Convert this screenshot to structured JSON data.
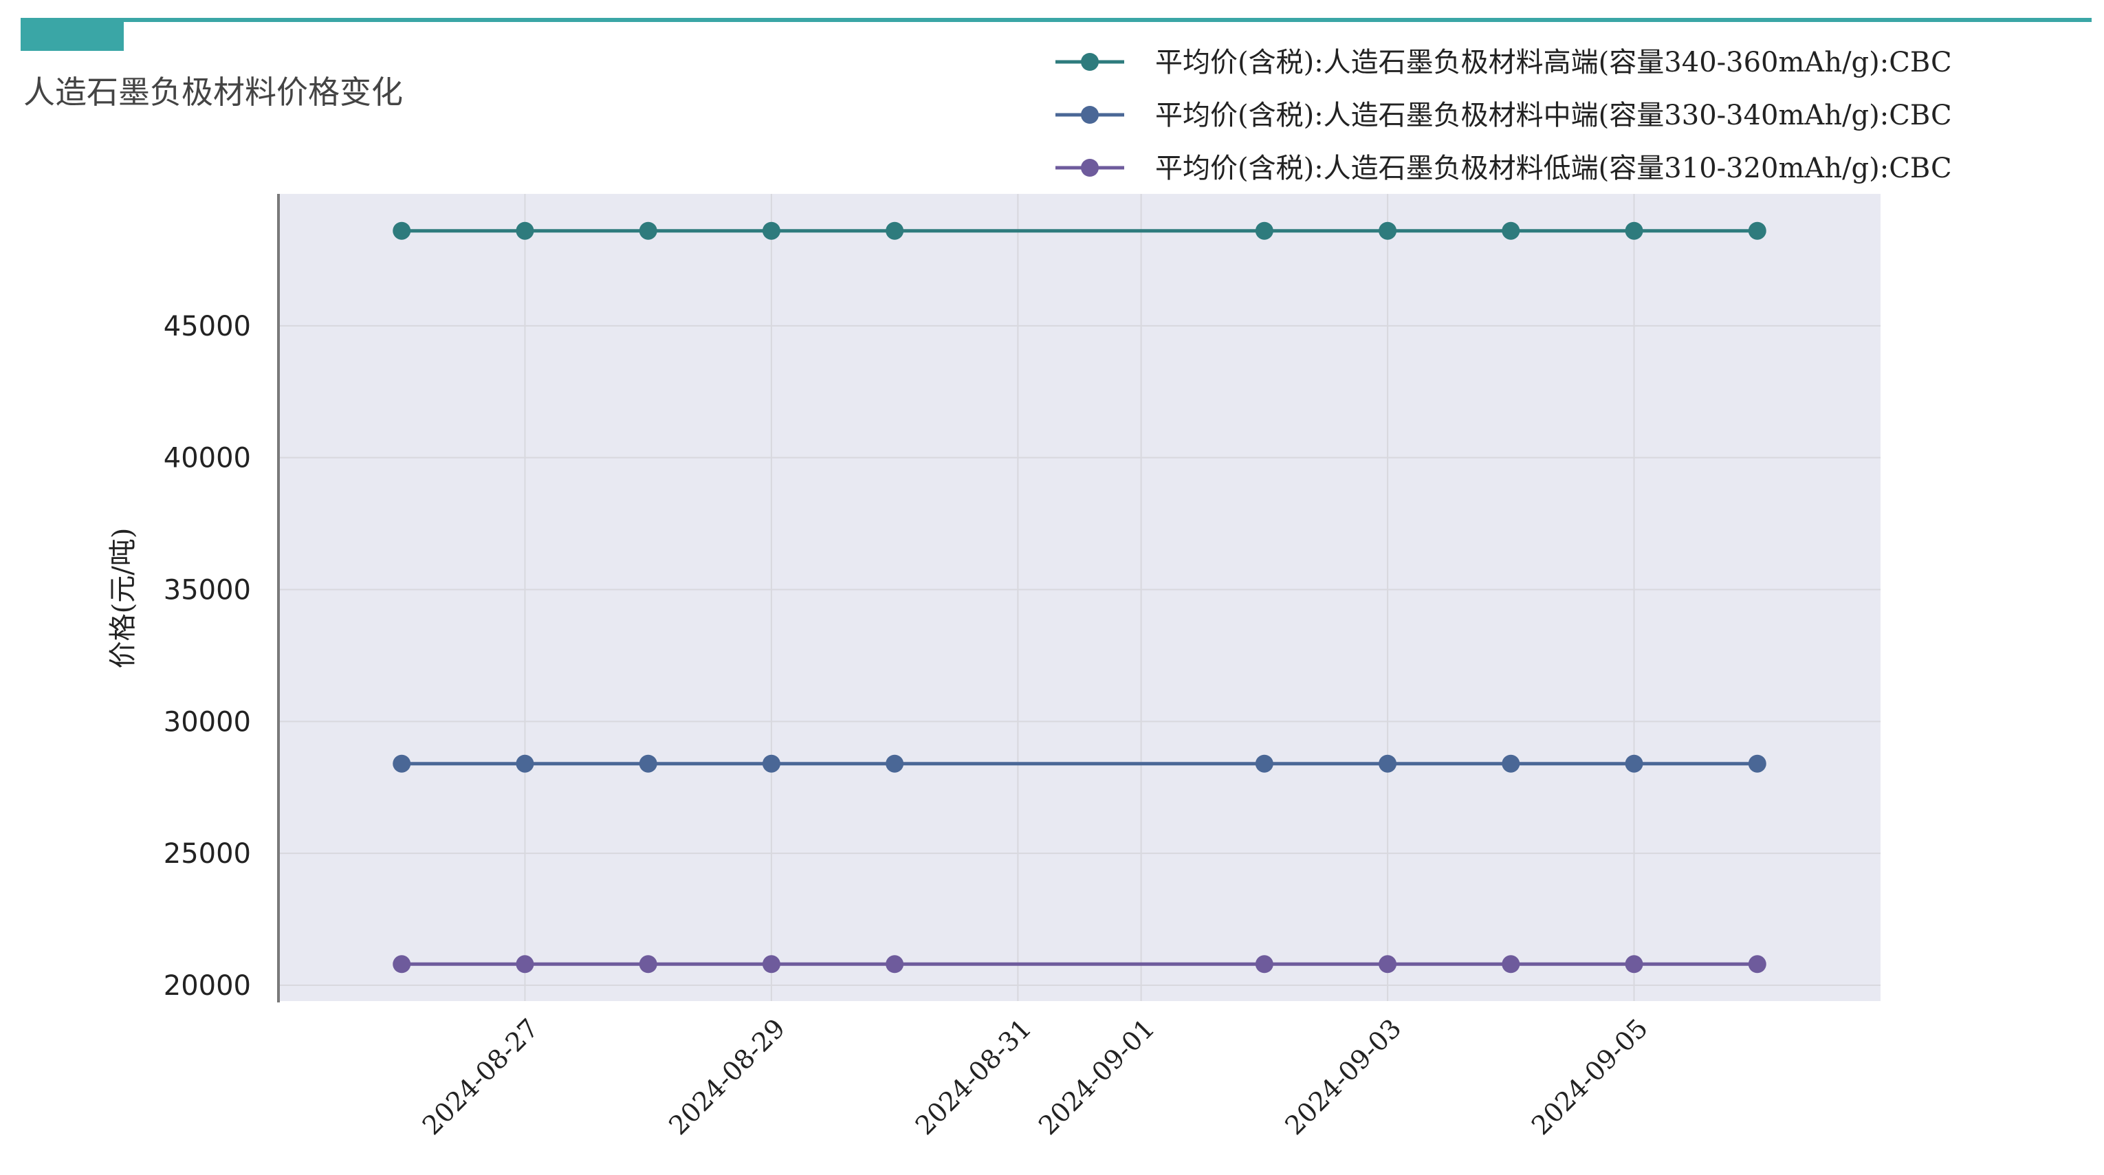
{
  "colors": {
    "accent_bar": "#3aa6a6",
    "plot_bg": "#e8e9f2",
    "grid": "#d8d8de",
    "axis": "#7a7a7a",
    "title_text": "#444444"
  },
  "chart_data": {
    "type": "line",
    "title": "人造石墨负极材料价格变化",
    "xlabel": "",
    "ylabel": "价格(元/吨)",
    "x": [
      "2024-08-26",
      "2024-08-27",
      "2024-08-28",
      "2024-08-29",
      "2024-08-30",
      "2024-09-02",
      "2024-09-03",
      "2024-09-04",
      "2024-09-05",
      "2024-09-06"
    ],
    "x_tick_labels": [
      "2024-08-27",
      "2024-08-29",
      "2024-08-31",
      "2024-09-01",
      "2024-09-03",
      "2024-09-05"
    ],
    "xlim": [
      "2024-08-25",
      "2024-09-07"
    ],
    "y_tick_labels": [
      "20000",
      "25000",
      "30000",
      "35000",
      "40000",
      "45000"
    ],
    "ylim": [
      19400,
      50000
    ],
    "grid": true,
    "legend_position": "top-right",
    "series": [
      {
        "name": "平均价(含税):人造石墨负极材料高端(容量340-360mAh/g):CBC",
        "color": "#2e7b7d",
        "values": [
          48600,
          48600,
          48600,
          48600,
          48600,
          48600,
          48600,
          48600,
          48600,
          48600
        ]
      },
      {
        "name": "平均价(含税):人造石墨负极材料中端(容量330-340mAh/g):CBC",
        "color": "#4a6796",
        "values": [
          28400,
          28400,
          28400,
          28400,
          28400,
          28400,
          28400,
          28400,
          28400,
          28400
        ]
      },
      {
        "name": "平均价(含税):人造石墨负极材料低端(容量310-320mAh/g):CBC",
        "color": "#6e5b9c",
        "values": [
          20800,
          20800,
          20800,
          20800,
          20800,
          20800,
          20800,
          20800,
          20800,
          20800
        ]
      }
    ]
  }
}
